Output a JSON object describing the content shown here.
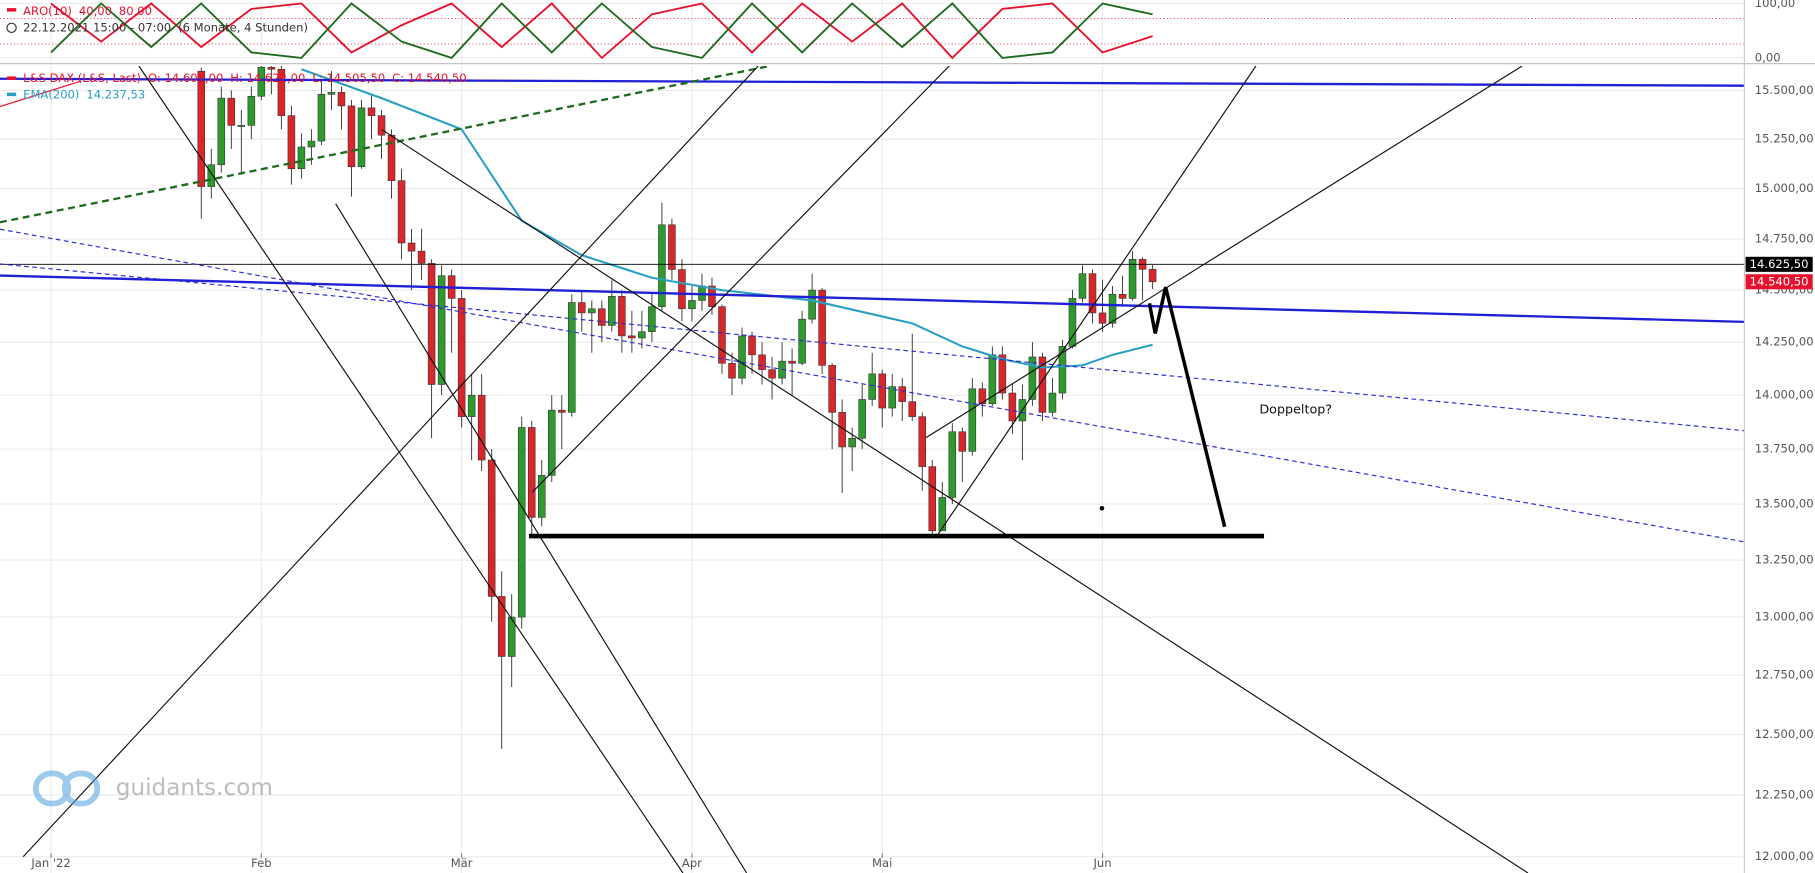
{
  "chart_data": [
    {
      "type": "line",
      "indicator": "ARO(10)",
      "time_info": "22.12.2021 15:00 - 07:00",
      "period": "(6 Monate, 4 Stunden)",
      "x": [
        0,
        5,
        10,
        15,
        20,
        25,
        30,
        35,
        40,
        45,
        50,
        55,
        60,
        65,
        70,
        75,
        80,
        85,
        90,
        95,
        100,
        105,
        110
      ],
      "xlim": [
        -5.1,
        169.1
      ],
      "ylim": [
        0,
        100
      ],
      "yticks": [
        {
          "value": 100,
          "label": "100,00"
        },
        {
          "value": 0,
          "label": "0,00"
        }
      ],
      "series": [
        {
          "color": "#e8112d",
          "last_label": "40,00",
          "values": [
            100,
            30,
            100,
            20,
            90,
            100,
            10,
            60,
            100,
            20,
            100,
            0,
            80,
            100,
            10,
            100,
            30,
            100,
            0,
            90,
            100,
            10,
            40
          ]
        },
        {
          "color": "#1e6b1e",
          "last_label": "80,00",
          "values": [
            10,
            100,
            20,
            100,
            10,
            0,
            100,
            30,
            0,
            100,
            10,
            100,
            20,
            0,
            100,
            10,
            100,
            20,
            100,
            0,
            10,
            100,
            80
          ]
        }
      ]
    },
    {
      "type": "candlestick",
      "log_scale": true,
      "grid": true,
      "xlim": [
        -5.1,
        169.1
      ],
      "xticks": [
        {
          "value": 0,
          "label": "Jan '22"
        },
        {
          "value": 21,
          "label": "Feb"
        },
        {
          "value": 41,
          "label": "Mär"
        },
        {
          "value": 64,
          "label": "Apr"
        },
        {
          "value": 83,
          "label": "Mai"
        },
        {
          "value": 105,
          "label": "Jun"
        }
      ],
      "ylim": [
        11935,
        15627
      ],
      "yticks": [
        {
          "value": 12000,
          "label": "12.000,00"
        },
        {
          "value": 12250,
          "label": "12.250,00"
        },
        {
          "value": 12500,
          "label": "12.500,00"
        },
        {
          "value": 12750,
          "label": "12.750,00"
        },
        {
          "value": 13000,
          "label": "13.000,00"
        },
        {
          "value": 13250,
          "label": "13.250,00"
        },
        {
          "value": 13500,
          "label": "13.500,00"
        },
        {
          "value": 13750,
          "label": "13.750,00"
        },
        {
          "value": 14000,
          "label": "14.000,00"
        },
        {
          "value": 14250,
          "label": "14.250,00"
        },
        {
          "value": 14500,
          "label": "14.500,00"
        },
        {
          "value": 14750,
          "label": "14.750,00"
        },
        {
          "value": 15000,
          "label": "15.000,00"
        },
        {
          "value": 15250,
          "label": "15.250,00"
        },
        {
          "value": 15500,
          "label": "15.500,00"
        }
      ],
      "series": [
        {
          "name": "L&S DAX (L&S, Last)",
          "color": "#e8112d",
          "color_up": "#2e9a2e",
          "color_down": "#d9262b",
          "last_labels": [
            "O: 14.601,00",
            "H: 14.622,00",
            "L: 14.505,50",
            "C: 14.540,50"
          ],
          "x": [
            15,
            16,
            17,
            18,
            19,
            20,
            21,
            22,
            23,
            24,
            25,
            26,
            27,
            28,
            29,
            30,
            31,
            32,
            33,
            34,
            35,
            36,
            37,
            38,
            39,
            40,
            41,
            42,
            43,
            44,
            45,
            46,
            47,
            48,
            49,
            50,
            51,
            52,
            53,
            54,
            55,
            56,
            57,
            58,
            59,
            60,
            61,
            62,
            63,
            64,
            65,
            66,
            67,
            68,
            69,
            70,
            71,
            72,
            73,
            74,
            75,
            76,
            77,
            78,
            79,
            80,
            81,
            82,
            83,
            84,
            85,
            86,
            87,
            88,
            89,
            90,
            91,
            92,
            93,
            94,
            95,
            96,
            97,
            98,
            99,
            100,
            101,
            102,
            103,
            104,
            105,
            106,
            107,
            108,
            109,
            110
          ],
          "open": [
            15600,
            15010,
            15120,
            15460,
            15320,
            15320,
            15470,
            15620,
            15610,
            15370,
            15100,
            15210,
            15240,
            15480,
            15490,
            15420,
            15110,
            15410,
            15370,
            15270,
            15040,
            14730,
            14690,
            14630,
            14050,
            14570,
            14460,
            13900,
            14000,
            13700,
            13090,
            12830,
            13000,
            13850,
            13440,
            13630,
            13930,
            13920,
            14440,
            14390,
            14410,
            14330,
            14470,
            14280,
            14270,
            14300,
            14420,
            14820,
            14600,
            14410,
            14450,
            14520,
            14420,
            14150,
            14080,
            14280,
            14190,
            14120,
            14080,
            14160,
            14150,
            14360,
            14500,
            14140,
            13920,
            13760,
            13800,
            13980,
            14100,
            13940,
            14040,
            13970,
            13900,
            13670,
            13380,
            13530,
            13830,
            13740,
            14030,
            13960,
            14190,
            14010,
            13880,
            13980,
            14180,
            13920,
            14010,
            14230,
            14460,
            14580,
            14390,
            14340,
            14480,
            14460,
            14650,
            14601
          ],
          "high": [
            15620,
            15200,
            15520,
            15500,
            15400,
            15520,
            15700,
            15680,
            15650,
            15420,
            15280,
            15300,
            15550,
            15600,
            15520,
            15450,
            15450,
            15480,
            15400,
            15300,
            15100,
            14800,
            14800,
            14650,
            14620,
            14600,
            14500,
            14100,
            14100,
            13750,
            13200,
            13100,
            13900,
            13880,
            13700,
            14000,
            14000,
            14480,
            14500,
            14450,
            14450,
            14550,
            14500,
            14400,
            14400,
            14480,
            14930,
            14850,
            14650,
            14520,
            14580,
            14560,
            14430,
            14200,
            14320,
            14300,
            14250,
            14180,
            14250,
            14220,
            14400,
            14580,
            14510,
            14150,
            13980,
            13850,
            14050,
            14200,
            14120,
            14100,
            14080,
            14290,
            13920,
            13700,
            13600,
            13870,
            13850,
            14080,
            14060,
            14230,
            14230,
            14050,
            14050,
            14250,
            14200,
            14080,
            14260,
            14500,
            14620,
            14600,
            14550,
            14520,
            14570,
            14690,
            14660,
            14622
          ],
          "low": [
            14850,
            14950,
            15080,
            15200,
            15070,
            15250,
            15450,
            15480,
            15300,
            15020,
            15050,
            15120,
            15220,
            15400,
            15300,
            14960,
            15100,
            15250,
            15150,
            14950,
            14650,
            14500,
            14550,
            13800,
            14000,
            14200,
            13850,
            13700,
            13650,
            12980,
            12440,
            12700,
            12950,
            13350,
            13400,
            13600,
            13750,
            13900,
            14300,
            14200,
            14250,
            14300,
            14200,
            14200,
            14220,
            14250,
            14400,
            14550,
            14350,
            14350,
            14400,
            14380,
            14100,
            14000,
            14050,
            14100,
            14050,
            13980,
            14050,
            14000,
            14140,
            14340,
            14100,
            13750,
            13550,
            13650,
            13750,
            13950,
            13850,
            13900,
            13880,
            13880,
            13560,
            13360,
            13400,
            13500,
            13600,
            13720,
            13900,
            13950,
            13980,
            13820,
            13700,
            13950,
            13880,
            13900,
            13980,
            14220,
            14440,
            14340,
            14300,
            14320,
            14420,
            14450,
            14450,
            14505.5
          ],
          "close": [
            15010,
            15120,
            15460,
            15320,
            15320,
            15470,
            15620,
            15610,
            15370,
            15100,
            15210,
            15240,
            15480,
            15490,
            15420,
            15110,
            15410,
            15370,
            15270,
            15040,
            14730,
            14690,
            14630,
            14050,
            14570,
            14460,
            13900,
            14000,
            13700,
            13090,
            12830,
            13000,
            13850,
            13440,
            13630,
            13930,
            13920,
            14440,
            14390,
            14410,
            14330,
            14470,
            14280,
            14270,
            14300,
            14420,
            14820,
            14600,
            14410,
            14450,
            14520,
            14420,
            14150,
            14080,
            14280,
            14190,
            14120,
            14080,
            14160,
            14150,
            14360,
            14500,
            14140,
            13920,
            13760,
            13800,
            13980,
            14100,
            13940,
            14040,
            13970,
            13900,
            13670,
            13380,
            13530,
            13830,
            13740,
            14030,
            13960,
            14190,
            14010,
            13880,
            13980,
            14180,
            13920,
            14010,
            14230,
            14460,
            14580,
            14390,
            14340,
            14480,
            14460,
            14650,
            14601,
            14540.5
          ]
        },
        {
          "name": "EMA(200)",
          "type": "line",
          "color": "#2a9fc4",
          "last_label": "14.237,53",
          "x": [
            25,
            33,
            41,
            47,
            53,
            60,
            67,
            76,
            86,
            91,
            95,
            99,
            103,
            106,
            110
          ],
          "values": [
            15610,
            15460,
            15300,
            14840,
            14670,
            14560,
            14500,
            14450,
            14340,
            14230,
            14170,
            14130,
            14140,
            14190,
            14237.53
          ]
        }
      ],
      "price_markers": [
        {
          "value": 14625.5,
          "label": "14.625,50",
          "color": "#000000",
          "line": true
        },
        {
          "value": 14540.5,
          "label": "14.540,50",
          "color": "#e8112d",
          "line": false
        }
      ],
      "annotation": "Doppeltop?",
      "watermark": "guidants.com"
    }
  ]
}
